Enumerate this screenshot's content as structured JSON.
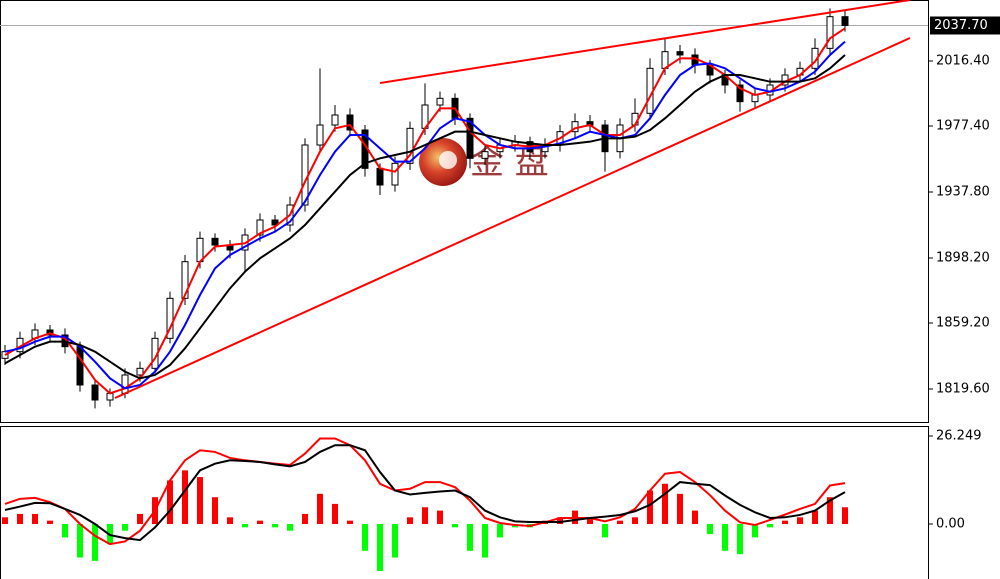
{
  "chart_data": [
    {
      "type": "candlestick",
      "open": [
        1838,
        1842,
        1850,
        1855,
        1852,
        1845,
        1822,
        1813,
        1817,
        1828,
        1832,
        1850,
        1874,
        1896,
        1910,
        1906,
        1903,
        1912,
        1921,
        1918,
        1930,
        1966,
        1978,
        1984,
        1975,
        1952,
        1942,
        1955,
        1976,
        1990,
        1994,
        1982,
        1958,
        1962,
        1966,
        1968,
        1962,
        1966,
        1974,
        1980,
        1978,
        1962,
        1978,
        1985,
        2012,
        2022,
        2020,
        2014,
        2008,
        2002,
        1992,
        1996,
        2002,
        2008,
        2012,
        2024,
        2043
      ],
      "high": [
        1846,
        1854,
        1859,
        1858,
        1856,
        1848,
        1825,
        1820,
        1832,
        1836,
        1854,
        1878,
        1900,
        1914,
        1913,
        1909,
        1916,
        1925,
        1924,
        1935,
        1970,
        2012,
        1990,
        1988,
        1978,
        1955,
        1959,
        1980,
        2003,
        1998,
        1997,
        1985,
        1966,
        1970,
        1972,
        1971,
        1970,
        1978,
        1985,
        1984,
        1981,
        1982,
        1994,
        2018,
        2030,
        2026,
        2024,
        2017,
        2011,
        2005,
        2000,
        2006,
        2012,
        2016,
        2030,
        2048,
        2047
      ],
      "low": [
        1834,
        1838,
        1846,
        1848,
        1841,
        1818,
        1808,
        1809,
        1814,
        1824,
        1829,
        1847,
        1870,
        1892,
        1902,
        1898,
        1890,
        1908,
        1914,
        1914,
        1926,
        1962,
        1974,
        1971,
        1947,
        1936,
        1938,
        1951,
        1972,
        1986,
        1978,
        1952,
        1954,
        1958,
        1962,
        1958,
        1958,
        1962,
        1970,
        1974,
        1950,
        1958,
        1974,
        1981,
        2008,
        2015,
        2009,
        2003,
        1997,
        1986,
        1988,
        1992,
        1998,
        2004,
        2008,
        2020,
        2034
      ],
      "close": [
        1842,
        1850,
        1855,
        1852,
        1845,
        1822,
        1813,
        1817,
        1828,
        1832,
        1850,
        1874,
        1896,
        1910,
        1906,
        1903,
        1912,
        1921,
        1918,
        1930,
        1966,
        1978,
        1984,
        1975,
        1952,
        1942,
        1955,
        1976,
        1990,
        1994,
        1982,
        1958,
        1962,
        1966,
        1968,
        1962,
        1966,
        1974,
        1980,
        1978,
        1962,
        1978,
        1985,
        2012,
        2022,
        2020,
        2014,
        2008,
        2002,
        1992,
        1996,
        2002,
        2008,
        2012,
        2024,
        2043,
        2037.7
      ],
      "up_color": "#ffffff",
      "down_color": "#000000",
      "series": [
        {
          "color": "#ff0000",
          "values": [
            1840,
            1845,
            1850,
            1853,
            1850,
            1838,
            1825,
            1817,
            1820,
            1826,
            1838,
            1856,
            1876,
            1896,
            1905,
            1906,
            1907,
            1913,
            1917,
            1924,
            1944,
            1962,
            1976,
            1978,
            1966,
            1952,
            1950,
            1960,
            1976,
            1988,
            1988,
            1974,
            1966,
            1964,
            1966,
            1965,
            1966,
            1970,
            1976,
            1978,
            1972,
            1972,
            1978,
            1995,
            2012,
            2018,
            2018,
            2014,
            2008,
            2000,
            1996,
            1998,
            2004,
            2008,
            2016,
            2030,
            2036
          ]
        },
        {
          "color": "#0000ff",
          "values": [
            1842,
            1844,
            1848,
            1851,
            1851,
            1845,
            1836,
            1826,
            1820,
            1822,
            1830,
            1842,
            1858,
            1876,
            1892,
            1900,
            1905,
            1910,
            1914,
            1920,
            1932,
            1948,
            1962,
            1972,
            1972,
            1964,
            1956,
            1956,
            1964,
            1976,
            1982,
            1980,
            1972,
            1966,
            1964,
            1964,
            1965,
            1967,
            1970,
            1974,
            1972,
            1970,
            1972,
            1982,
            1996,
            2008,
            2014,
            2015,
            2012,
            2006,
            2000,
            1998,
            2000,
            2004,
            2010,
            2020,
            2028
          ]
        },
        {
          "color": "#000000",
          "values": [
            1835,
            1840,
            1845,
            1848,
            1848,
            1846,
            1842,
            1836,
            1830,
            1826,
            1828,
            1834,
            1844,
            1856,
            1868,
            1880,
            1890,
            1898,
            1904,
            1910,
            1918,
            1928,
            1938,
            1948,
            1955,
            1958,
            1960,
            1962,
            1966,
            1970,
            1974,
            1974,
            1972,
            1970,
            1968,
            1967,
            1966,
            1966,
            1967,
            1968,
            1970,
            1970,
            1971,
            1975,
            1982,
            1990,
            1998,
            2004,
            2008,
            2008,
            2006,
            2004,
            2004,
            2004,
            2006,
            2012,
            2020
          ]
        }
      ],
      "ylim": [
        1799.8,
        2053.0
      ],
      "yticks": [
        {
          "value": 1819.6,
          "label": "1819.60"
        },
        {
          "value": 1859.2,
          "label": "1859.20"
        },
        {
          "value": 1898.2,
          "label": "1898.20"
        },
        {
          "value": 1937.8,
          "label": "1937.80"
        },
        {
          "value": 1977.4,
          "label": "1977.40"
        },
        {
          "value": 2016.4,
          "label": "2016.40"
        }
      ],
      "last_price": {
        "value": 2037.7,
        "label": "2037.70"
      },
      "watermark": "金 盘"
    },
    {
      "type": "macd",
      "values": [
        2,
        3,
        3,
        1,
        -4,
        -10,
        -11,
        -6,
        -2,
        3,
        8,
        13,
        16,
        14,
        8,
        2,
        -1,
        1,
        -1,
        -2,
        3,
        9,
        6,
        1,
        -8,
        -14,
        -10,
        2,
        5,
        4,
        -1,
        -8,
        -10,
        -4,
        -1,
        -1,
        1,
        2,
        4,
        2,
        -4,
        1,
        2,
        10,
        12,
        9,
        4,
        -3,
        -8,
        -9,
        -4,
        -1,
        1,
        2,
        4,
        8,
        5
      ],
      "positive_color": "#ff0000",
      "negative_color": "#00ff00",
      "series": [
        {
          "color": "#ff0000",
          "values": [
            6,
            7.5,
            7.8,
            6.5,
            4.5,
            0,
            -3.5,
            -6,
            -5.2,
            -2,
            4,
            13,
            19,
            22,
            21.5,
            19.7,
            19,
            18.5,
            18,
            17.6,
            21,
            25.5,
            25.5,
            23.5,
            19,
            12,
            10,
            10.5,
            12.5,
            12.5,
            11,
            7,
            1.8,
            0.3,
            -0.3,
            -0.6,
            0.5,
            1.8,
            1.8,
            1.8,
            0.8,
            2,
            4.5,
            10,
            15,
            15.5,
            12.5,
            8.6,
            4,
            0.5,
            -0.3,
            1.2,
            2.8,
            4.5,
            6,
            11.5,
            12.2
          ]
        },
        {
          "color": "#000000",
          "values": [
            4.2,
            5.2,
            6.3,
            6.2,
            4.5,
            2.7,
            0,
            -3.3,
            -4.2,
            -4.8,
            -1,
            4,
            10,
            16,
            18,
            19,
            18.8,
            18.5,
            17.8,
            17.2,
            18.5,
            21.5,
            23.5,
            23.5,
            22,
            15.5,
            10,
            8.8,
            9.3,
            9.7,
            10,
            8,
            4,
            2,
            0.8,
            0.6,
            0.6,
            0.6,
            1.2,
            1.8,
            2.2,
            2.7,
            3.8,
            5.7,
            9,
            12.5,
            12,
            11.6,
            8.5,
            5.7,
            3.5,
            1.8,
            2,
            2.7,
            4,
            7,
            9.5
          ]
        }
      ],
      "ylim": [
        -16.4,
        29.23
      ],
      "yticks": [
        26.249,
        {
          "value": 0,
          "label": "0.00"
        }
      ]
    }
  ]
}
